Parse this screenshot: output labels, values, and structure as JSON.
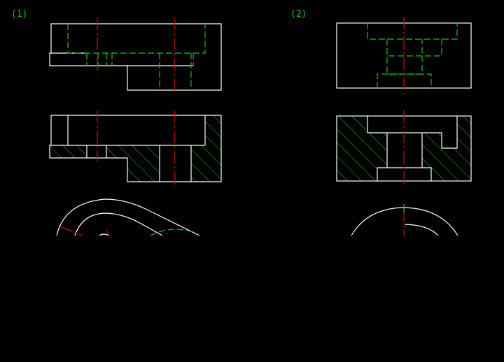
{
  "diagram": {
    "labels": [
      "(1)",
      "(2)"
    ],
    "colors": {
      "background": "#000000",
      "visible_line": "#ffffff",
      "hidden_line": "#00d000",
      "center_line": "#e00000",
      "hatch": "#00d000",
      "label": "#00d000"
    }
  }
}
